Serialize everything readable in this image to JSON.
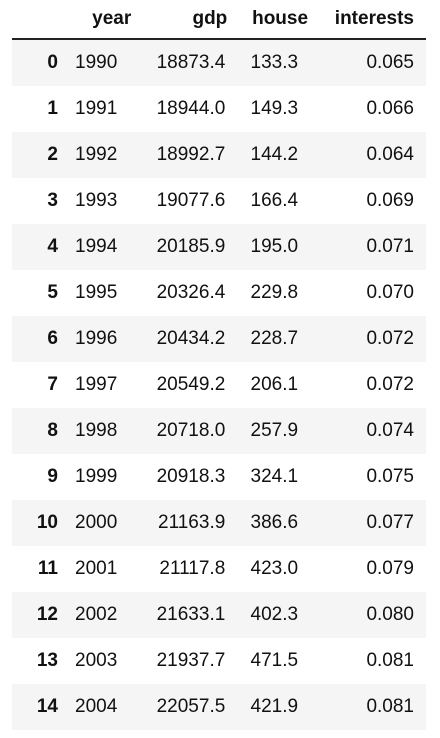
{
  "table": {
    "columns": [
      "year",
      "gdp",
      "house",
      "interests"
    ],
    "rows": [
      {
        "index": "0",
        "year": "1990",
        "gdp": "18873.4",
        "house": "133.3",
        "interests": "0.065"
      },
      {
        "index": "1",
        "year": "1991",
        "gdp": "18944.0",
        "house": "149.3",
        "interests": "0.066"
      },
      {
        "index": "2",
        "year": "1992",
        "gdp": "18992.7",
        "house": "144.2",
        "interests": "0.064"
      },
      {
        "index": "3",
        "year": "1993",
        "gdp": "19077.6",
        "house": "166.4",
        "interests": "0.069"
      },
      {
        "index": "4",
        "year": "1994",
        "gdp": "20185.9",
        "house": "195.0",
        "interests": "0.071"
      },
      {
        "index": "5",
        "year": "1995",
        "gdp": "20326.4",
        "house": "229.8",
        "interests": "0.070"
      },
      {
        "index": "6",
        "year": "1996",
        "gdp": "20434.2",
        "house": "228.7",
        "interests": "0.072"
      },
      {
        "index": "7",
        "year": "1997",
        "gdp": "20549.2",
        "house": "206.1",
        "interests": "0.072"
      },
      {
        "index": "8",
        "year": "1998",
        "gdp": "20718.0",
        "house": "257.9",
        "interests": "0.074"
      },
      {
        "index": "9",
        "year": "1999",
        "gdp": "20918.3",
        "house": "324.1",
        "interests": "0.075"
      },
      {
        "index": "10",
        "year": "2000",
        "gdp": "21163.9",
        "house": "386.6",
        "interests": "0.077"
      },
      {
        "index": "11",
        "year": "2001",
        "gdp": "21117.8",
        "house": "423.0",
        "interests": "0.079"
      },
      {
        "index": "12",
        "year": "2002",
        "gdp": "21633.1",
        "house": "402.3",
        "interests": "0.080"
      },
      {
        "index": "13",
        "year": "2003",
        "gdp": "21937.7",
        "house": "471.5",
        "interests": "0.081"
      },
      {
        "index": "14",
        "year": "2004",
        "gdp": "22057.5",
        "house": "421.9",
        "interests": "0.081"
      }
    ]
  }
}
